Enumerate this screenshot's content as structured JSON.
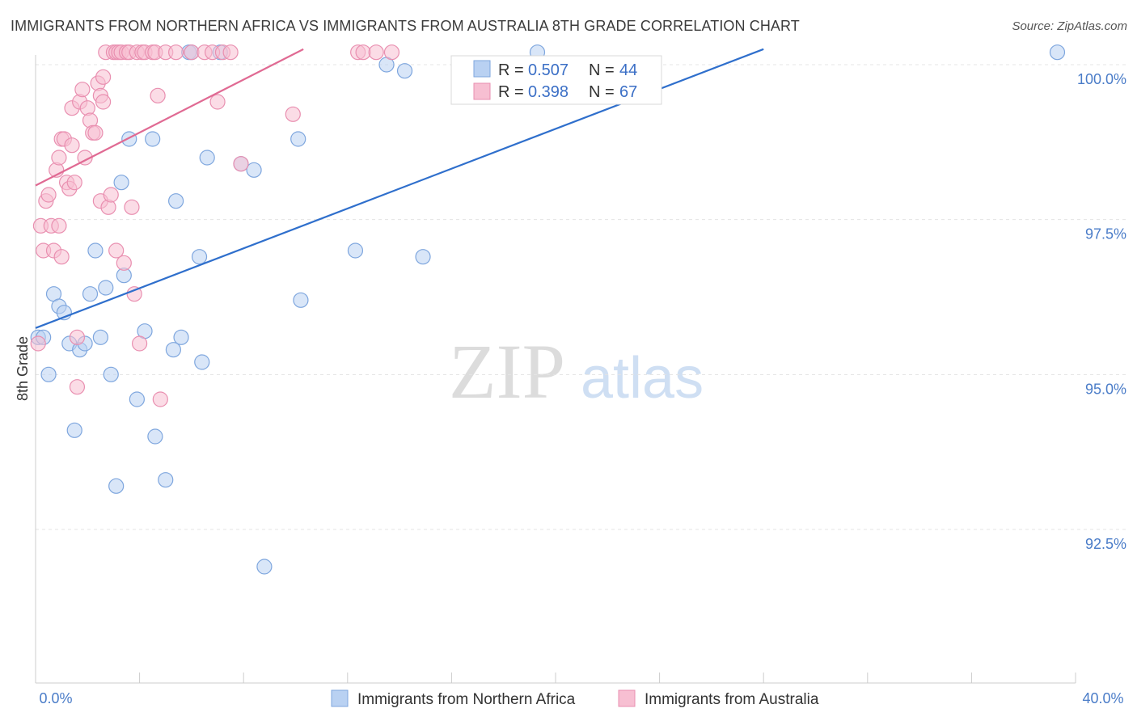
{
  "header": {
    "title": "IMMIGRANTS FROM NORTHERN AFRICA VS IMMIGRANTS FROM AUSTRALIA 8TH GRADE CORRELATION CHART",
    "source": "Source: ZipAtlas.com"
  },
  "watermark": {
    "zip": "ZIP",
    "atlas": "atlas"
  },
  "colors": {
    "blue_fill": "#b9d1f2",
    "blue_stroke": "#7ea6de",
    "blue_line": "#2f6fcc",
    "pink_fill": "#f7bfd2",
    "pink_stroke": "#e98fb0",
    "pink_line": "#e06a93",
    "tick_text": "#4a7cc8"
  },
  "chart_data": {
    "type": "scatter",
    "title": "IMMIGRANTS FROM NORTHERN AFRICA VS IMMIGRANTS FROM AUSTRALIA 8TH GRADE CORRELATION CHART",
    "xlabel": "",
    "ylabel": "8th Grade",
    "xlim": [
      0,
      40
    ],
    "ylim": [
      90.0,
      100.4
    ],
    "x_tick_labels": [
      "0.0%",
      "40.0%"
    ],
    "y_ticks": [
      {
        "value": 100.0,
        "label": "100.0%"
      },
      {
        "value": 97.5,
        "label": "97.5%"
      },
      {
        "value": 95.0,
        "label": "95.0%"
      },
      {
        "value": 92.5,
        "label": "92.5%"
      }
    ],
    "legend": {
      "r_label": "R =",
      "n_label": "N =",
      "entries": [
        {
          "r": "0.507",
          "n": "44"
        },
        {
          "r": "0.398",
          "n": "67"
        }
      ]
    },
    "series": [
      {
        "name": "Immigrants from Northern Africa",
        "color": "blue",
        "trend": {
          "x0": 0.0,
          "y0": 95.75,
          "x1": 28.0,
          "y1": 100.25
        },
        "points": [
          [
            0.1,
            95.6
          ],
          [
            0.3,
            95.6
          ],
          [
            0.5,
            95.0
          ],
          [
            0.7,
            96.3
          ],
          [
            0.9,
            96.1
          ],
          [
            1.1,
            96.0
          ],
          [
            1.3,
            95.5
          ],
          [
            1.5,
            94.1
          ],
          [
            1.7,
            95.4
          ],
          [
            1.9,
            95.5
          ],
          [
            2.1,
            96.3
          ],
          [
            2.3,
            97.0
          ],
          [
            2.5,
            95.6
          ],
          [
            2.7,
            96.4
          ],
          [
            2.9,
            95.0
          ],
          [
            3.1,
            93.2
          ],
          [
            3.3,
            98.1
          ],
          [
            3.4,
            96.6
          ],
          [
            3.6,
            98.8
          ],
          [
            3.9,
            94.6
          ],
          [
            4.2,
            95.7
          ],
          [
            4.5,
            98.8
          ],
          [
            4.6,
            94.0
          ],
          [
            5.0,
            93.3
          ],
          [
            5.3,
            95.4
          ],
          [
            5.4,
            97.8
          ],
          [
            5.6,
            95.6
          ],
          [
            5.9,
            100.2
          ],
          [
            6.0,
            100.2
          ],
          [
            6.3,
            96.9
          ],
          [
            6.4,
            95.2
          ],
          [
            6.6,
            98.5
          ],
          [
            7.1,
            100.2
          ],
          [
            7.9,
            98.4
          ],
          [
            8.4,
            98.3
          ],
          [
            8.8,
            91.9
          ],
          [
            10.1,
            98.8
          ],
          [
            10.2,
            96.2
          ],
          [
            12.3,
            97.0
          ],
          [
            13.5,
            100.0
          ],
          [
            14.2,
            99.9
          ],
          [
            14.9,
            96.9
          ],
          [
            19.3,
            100.2
          ],
          [
            39.3,
            100.2
          ]
        ]
      },
      {
        "name": "Immigrants from Australia",
        "color": "pink",
        "trend": {
          "x0": 0.0,
          "y0": 98.05,
          "x1": 10.3,
          "y1": 100.25
        },
        "points": [
          [
            0.1,
            95.5
          ],
          [
            0.2,
            97.4
          ],
          [
            0.3,
            97.0
          ],
          [
            0.4,
            97.8
          ],
          [
            0.5,
            97.9
          ],
          [
            0.6,
            97.4
          ],
          [
            0.7,
            97.0
          ],
          [
            0.8,
            98.3
          ],
          [
            0.9,
            98.5
          ],
          [
            0.9,
            97.4
          ],
          [
            1.0,
            96.9
          ],
          [
            1.0,
            98.8
          ],
          [
            1.1,
            98.8
          ],
          [
            1.2,
            98.1
          ],
          [
            1.3,
            98.0
          ],
          [
            1.4,
            99.3
          ],
          [
            1.4,
            98.7
          ],
          [
            1.5,
            98.1
          ],
          [
            1.6,
            95.6
          ],
          [
            1.6,
            94.8
          ],
          [
            1.7,
            99.4
          ],
          [
            1.8,
            99.6
          ],
          [
            1.9,
            98.5
          ],
          [
            2.0,
            99.3
          ],
          [
            2.1,
            99.1
          ],
          [
            2.2,
            98.9
          ],
          [
            2.3,
            98.9
          ],
          [
            2.4,
            99.7
          ],
          [
            2.5,
            99.5
          ],
          [
            2.5,
            97.8
          ],
          [
            2.6,
            99.8
          ],
          [
            2.6,
            99.4
          ],
          [
            2.7,
            100.2
          ],
          [
            2.8,
            97.7
          ],
          [
            2.9,
            97.9
          ],
          [
            3.0,
            100.2
          ],
          [
            3.1,
            100.2
          ],
          [
            3.1,
            97.0
          ],
          [
            3.2,
            100.2
          ],
          [
            3.3,
            100.2
          ],
          [
            3.4,
            96.8
          ],
          [
            3.5,
            100.2
          ],
          [
            3.6,
            100.2
          ],
          [
            3.7,
            97.7
          ],
          [
            3.8,
            96.3
          ],
          [
            3.9,
            100.2
          ],
          [
            4.0,
            95.5
          ],
          [
            4.1,
            100.2
          ],
          [
            4.2,
            100.2
          ],
          [
            4.5,
            100.2
          ],
          [
            4.6,
            100.2
          ],
          [
            4.7,
            99.5
          ],
          [
            4.8,
            94.6
          ],
          [
            5.0,
            100.2
          ],
          [
            5.4,
            100.2
          ],
          [
            6.0,
            100.2
          ],
          [
            6.5,
            100.2
          ],
          [
            6.8,
            100.2
          ],
          [
            7.0,
            99.4
          ],
          [
            7.2,
            100.2
          ],
          [
            7.5,
            100.2
          ],
          [
            7.9,
            98.4
          ],
          [
            9.9,
            99.2
          ],
          [
            12.4,
            100.2
          ],
          [
            12.6,
            100.2
          ],
          [
            13.1,
            100.2
          ],
          [
            13.7,
            100.2
          ]
        ]
      }
    ]
  }
}
